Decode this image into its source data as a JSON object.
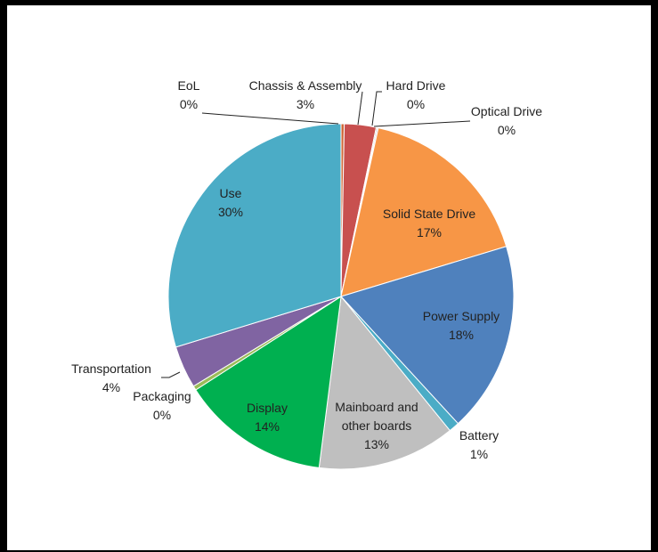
{
  "chart_data": {
    "type": "pie",
    "title": "",
    "start_angle_deg": 0,
    "direction": "clockwise",
    "colors": {
      "EoL": "#D0683A",
      "Chassis & Assembly": "#C8504F",
      "Hard Drive": "#7D9F4C",
      "Optical Drive": "#7F64A2",
      "Solid State Drive": "#F79646",
      "Power Supply": "#4F81BD",
      "Battery": "#4BACC6",
      "Mainboard and other boards": "#BFBFBF",
      "Display": "#00B050",
      "Packaging": "#9BBB59",
      "Transportation": "#8064A2",
      "Use": "#4BACC6"
    },
    "slices": [
      {
        "label": "EoL",
        "percent_label": "0%",
        "value": 0.3
      },
      {
        "label": "Chassis & Assembly",
        "percent_label": "3%",
        "value": 3
      },
      {
        "label": "Hard Drive",
        "percent_label": "0%",
        "value": 0.1
      },
      {
        "label": "Optical Drive",
        "percent_label": "0%",
        "value": 0.1
      },
      {
        "label": "Solid State Drive",
        "percent_label": "17%",
        "value": 17
      },
      {
        "label": "Power Supply",
        "percent_label": "18%",
        "value": 18
      },
      {
        "label": "Battery",
        "percent_label": "1%",
        "value": 1
      },
      {
        "label": "Mainboard and other boards",
        "percent_label": "13%",
        "value": 13
      },
      {
        "label": "Display",
        "percent_label": "14%",
        "value": 14
      },
      {
        "label": "Packaging",
        "percent_label": "0%",
        "value": 0.4
      },
      {
        "label": "Transportation",
        "percent_label": "4%",
        "value": 4
      },
      {
        "label": "Use",
        "percent_label": "30%",
        "value": 30
      }
    ],
    "label_lines": {
      "EoL": [
        "EoL"
      ],
      "Chassis & Assembly": [
        "Chassis & Assembly"
      ],
      "Hard Drive": [
        "Hard Drive"
      ],
      "Optical Drive": [
        "Optical Drive"
      ],
      "Solid State Drive": [
        "Solid State Drive"
      ],
      "Power Supply": [
        "Power Supply"
      ],
      "Battery": [
        "Battery"
      ],
      "Mainboard and other boards": [
        "Mainboard and",
        "other boards"
      ],
      "Display": [
        "Display"
      ],
      "Packaging": [
        "Packaging"
      ],
      "Transportation": [
        "Transportation"
      ],
      "Use": [
        "Use"
      ]
    }
  }
}
